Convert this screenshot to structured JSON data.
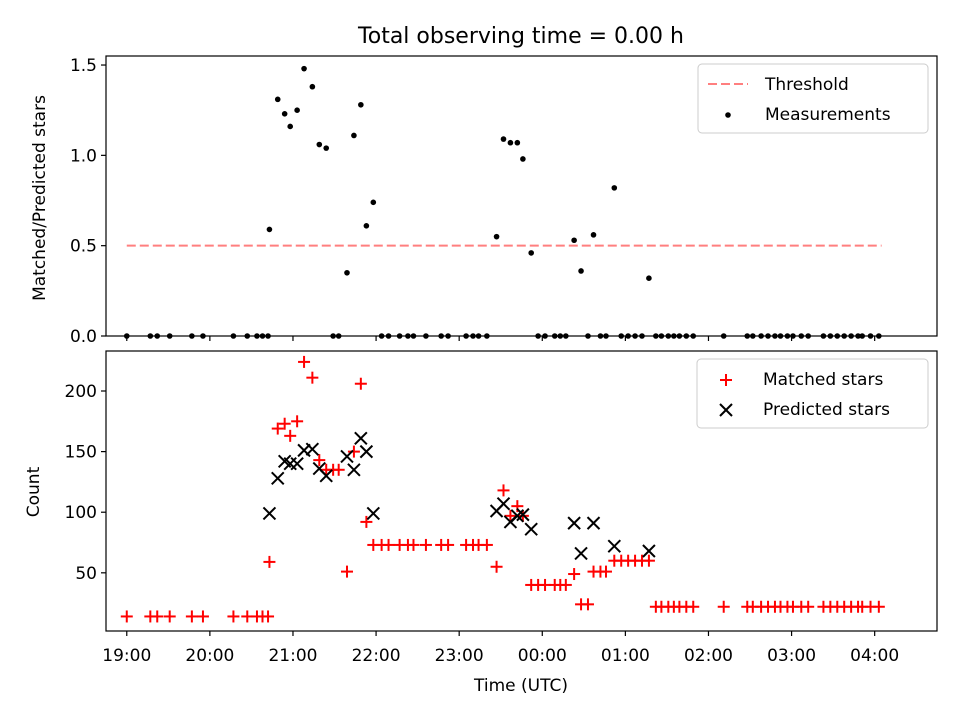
{
  "figure": {
    "title": "Total observing time = 0.00 h",
    "xlabel": "Time (UTC)"
  },
  "chart_data": [
    {
      "type": "scatter",
      "ylabel": "Matched/Predicted stars",
      "xlim": [
        "18:45",
        "04:45"
      ],
      "ylim": [
        0,
        1.55
      ],
      "yticks": [
        "0.0",
        "0.5",
        "1.0",
        "1.5"
      ],
      "xticks": [
        "19:00",
        "20:00",
        "21:00",
        "22:00",
        "23:00",
        "00:00",
        "01:00",
        "02:00",
        "03:00",
        "04:00"
      ],
      "grid": false,
      "legend_position": "top-right",
      "threshold": {
        "name": "Threshold",
        "value": 0.5,
        "x_range": [
          "19:00",
          "04:05"
        ],
        "color": "#ff7f7f"
      },
      "series": [
        {
          "name": "Measurements",
          "color": "#000000",
          "points": [
            [
              "19:00",
              0
            ],
            [
              "19:17",
              0
            ],
            [
              "19:22",
              0
            ],
            [
              "19:31",
              0
            ],
            [
              "19:47",
              0
            ],
            [
              "19:55",
              0
            ],
            [
              "20:17",
              0
            ],
            [
              "20:27",
              0
            ],
            [
              "20:34",
              0
            ],
            [
              "20:38",
              0
            ],
            [
              "20:42",
              0
            ],
            [
              "20:43",
              0.59
            ],
            [
              "20:49",
              1.31
            ],
            [
              "20:54",
              1.23
            ],
            [
              "20:58",
              1.16
            ],
            [
              "21:03",
              1.25
            ],
            [
              "21:08",
              1.48
            ],
            [
              "21:14",
              1.38
            ],
            [
              "21:19",
              1.06
            ],
            [
              "21:24",
              1.04
            ],
            [
              "21:29",
              0
            ],
            [
              "21:33",
              0
            ],
            [
              "21:39",
              0.35
            ],
            [
              "21:44",
              1.11
            ],
            [
              "21:49",
              1.28
            ],
            [
              "21:53",
              0.61
            ],
            [
              "21:58",
              0.74
            ],
            [
              "22:04",
              0
            ],
            [
              "22:09",
              0
            ],
            [
              "22:17",
              0
            ],
            [
              "22:23",
              0
            ],
            [
              "22:27",
              0
            ],
            [
              "22:36",
              0
            ],
            [
              "22:47",
              0
            ],
            [
              "22:52",
              0
            ],
            [
              "23:05",
              0
            ],
            [
              "23:10",
              0
            ],
            [
              "23:14",
              0
            ],
            [
              "23:20",
              0
            ],
            [
              "23:27",
              0.55
            ],
            [
              "23:32",
              1.09
            ],
            [
              "23:37",
              1.07
            ],
            [
              "23:42",
              1.07
            ],
            [
              "23:46",
              0.98
            ],
            [
              "23:52",
              0.46
            ],
            [
              "23:57",
              0
            ],
            [
              "00:02",
              0
            ],
            [
              "00:09",
              0
            ],
            [
              "00:13",
              0
            ],
            [
              "00:17",
              0
            ],
            [
              "00:23",
              0.53
            ],
            [
              "00:28",
              0.36
            ],
            [
              "00:33",
              0
            ],
            [
              "00:37",
              0.56
            ],
            [
              "00:42",
              0
            ],
            [
              "00:46",
              0
            ],
            [
              "00:52",
              0.82
            ],
            [
              "00:57",
              0
            ],
            [
              "01:02",
              0
            ],
            [
              "01:07",
              0
            ],
            [
              "01:12",
              0
            ],
            [
              "01:17",
              0.32
            ],
            [
              "01:22",
              0
            ],
            [
              "01:26",
              0
            ],
            [
              "01:31",
              0
            ],
            [
              "01:35",
              0
            ],
            [
              "01:39",
              0
            ],
            [
              "01:44",
              0
            ],
            [
              "01:49",
              0
            ],
            [
              "02:11",
              0
            ],
            [
              "02:28",
              0
            ],
            [
              "02:32",
              0
            ],
            [
              "02:38",
              0
            ],
            [
              "02:43",
              0
            ],
            [
              "02:48",
              0
            ],
            [
              "02:52",
              0
            ],
            [
              "02:57",
              0
            ],
            [
              "03:01",
              0
            ],
            [
              "03:07",
              0
            ],
            [
              "03:12",
              0
            ],
            [
              "03:23",
              0
            ],
            [
              "03:28",
              0
            ],
            [
              "03:33",
              0
            ],
            [
              "03:38",
              0
            ],
            [
              "03:43",
              0
            ],
            [
              "03:48",
              0
            ],
            [
              "03:51",
              0
            ],
            [
              "03:57",
              0
            ],
            [
              "04:03",
              0
            ]
          ]
        }
      ]
    },
    {
      "type": "scatter",
      "ylabel": "Count",
      "xlabel": "Time (UTC)",
      "xlim": [
        "18:45",
        "04:45"
      ],
      "ylim": [
        2,
        233
      ],
      "yticks": [
        "50",
        "100",
        "150",
        "200"
      ],
      "xticks": [
        "19:00",
        "20:00",
        "21:00",
        "22:00",
        "23:00",
        "00:00",
        "01:00",
        "02:00",
        "03:00",
        "04:00"
      ],
      "grid": false,
      "legend_position": "top-right",
      "series": [
        {
          "name": "Matched stars",
          "marker": "plus",
          "color": "#ff0000",
          "points": [
            [
              "19:00",
              14
            ],
            [
              "19:17",
              14
            ],
            [
              "19:22",
              14
            ],
            [
              "19:31",
              14
            ],
            [
              "19:47",
              14
            ],
            [
              "19:55",
              14
            ],
            [
              "20:17",
              14
            ],
            [
              "20:27",
              14
            ],
            [
              "20:34",
              14
            ],
            [
              "20:38",
              14
            ],
            [
              "20:42",
              14
            ],
            [
              "20:43",
              59
            ],
            [
              "20:49",
              169
            ],
            [
              "20:54",
              173
            ],
            [
              "20:58",
              163
            ],
            [
              "21:03",
              175
            ],
            [
              "21:08",
              224
            ],
            [
              "21:14",
              211
            ],
            [
              "21:19",
              143
            ],
            [
              "21:24",
              135
            ],
            [
              "21:29",
              135
            ],
            [
              "21:33",
              135
            ],
            [
              "21:39",
              51
            ],
            [
              "21:44",
              150
            ],
            [
              "21:49",
              206
            ],
            [
              "21:53",
              92
            ],
            [
              "21:58",
              73
            ],
            [
              "22:04",
              73
            ],
            [
              "22:09",
              73
            ],
            [
              "22:17",
              73
            ],
            [
              "22:23",
              73
            ],
            [
              "22:27",
              73
            ],
            [
              "22:36",
              73
            ],
            [
              "22:47",
              73
            ],
            [
              "22:52",
              73
            ],
            [
              "23:05",
              73
            ],
            [
              "23:10",
              73
            ],
            [
              "23:14",
              73
            ],
            [
              "23:20",
              73
            ],
            [
              "23:27",
              55
            ],
            [
              "23:32",
              118
            ],
            [
              "23:37",
              97
            ],
            [
              "23:42",
              105
            ],
            [
              "23:46",
              97
            ],
            [
              "23:52",
              40
            ],
            [
              "23:57",
              40
            ],
            [
              "00:02",
              40
            ],
            [
              "00:09",
              40
            ],
            [
              "00:13",
              40
            ],
            [
              "00:17",
              40
            ],
            [
              "00:23",
              49
            ],
            [
              "00:28",
              24
            ],
            [
              "00:33",
              24
            ],
            [
              "00:37",
              51
            ],
            [
              "00:42",
              51
            ],
            [
              "00:46",
              51
            ],
            [
              "00:52",
              60
            ],
            [
              "00:57",
              60
            ],
            [
              "01:02",
              60
            ],
            [
              "01:07",
              60
            ],
            [
              "01:12",
              60
            ],
            [
              "01:17",
              60
            ],
            [
              "01:22",
              22
            ],
            [
              "01:26",
              22
            ],
            [
              "01:31",
              22
            ],
            [
              "01:35",
              22
            ],
            [
              "01:39",
              22
            ],
            [
              "01:44",
              22
            ],
            [
              "01:49",
              22
            ],
            [
              "02:11",
              22
            ],
            [
              "02:28",
              22
            ],
            [
              "02:32",
              22
            ],
            [
              "02:38",
              22
            ],
            [
              "02:43",
              22
            ],
            [
              "02:48",
              22
            ],
            [
              "02:52",
              22
            ],
            [
              "02:57",
              22
            ],
            [
              "03:01",
              22
            ],
            [
              "03:07",
              22
            ],
            [
              "03:12",
              22
            ],
            [
              "03:23",
              22
            ],
            [
              "03:28",
              22
            ],
            [
              "03:33",
              22
            ],
            [
              "03:38",
              22
            ],
            [
              "03:43",
              22
            ],
            [
              "03:48",
              22
            ],
            [
              "03:51",
              22
            ],
            [
              "03:57",
              22
            ],
            [
              "04:03",
              22
            ]
          ]
        },
        {
          "name": "Predicted stars",
          "marker": "x",
          "color": "#000000",
          "points": [
            [
              "20:43",
              99
            ],
            [
              "20:49",
              128
            ],
            [
              "20:54",
              142
            ],
            [
              "20:58",
              140
            ],
            [
              "21:03",
              140
            ],
            [
              "21:08",
              151
            ],
            [
              "21:14",
              152
            ],
            [
              "21:19",
              136
            ],
            [
              "21:24",
              130
            ],
            [
              "21:39",
              146
            ],
            [
              "21:44",
              135
            ],
            [
              "21:49",
              161
            ],
            [
              "21:53",
              150
            ],
            [
              "21:58",
              99
            ],
            [
              "23:27",
              101
            ],
            [
              "23:32",
              107
            ],
            [
              "23:37",
              92
            ],
            [
              "23:42",
              97
            ],
            [
              "23:46",
              98
            ],
            [
              "23:52",
              86
            ],
            [
              "00:23",
              91
            ],
            [
              "00:28",
              66
            ],
            [
              "00:37",
              91
            ],
            [
              "00:52",
              72
            ],
            [
              "01:17",
              68
            ]
          ]
        }
      ]
    }
  ]
}
